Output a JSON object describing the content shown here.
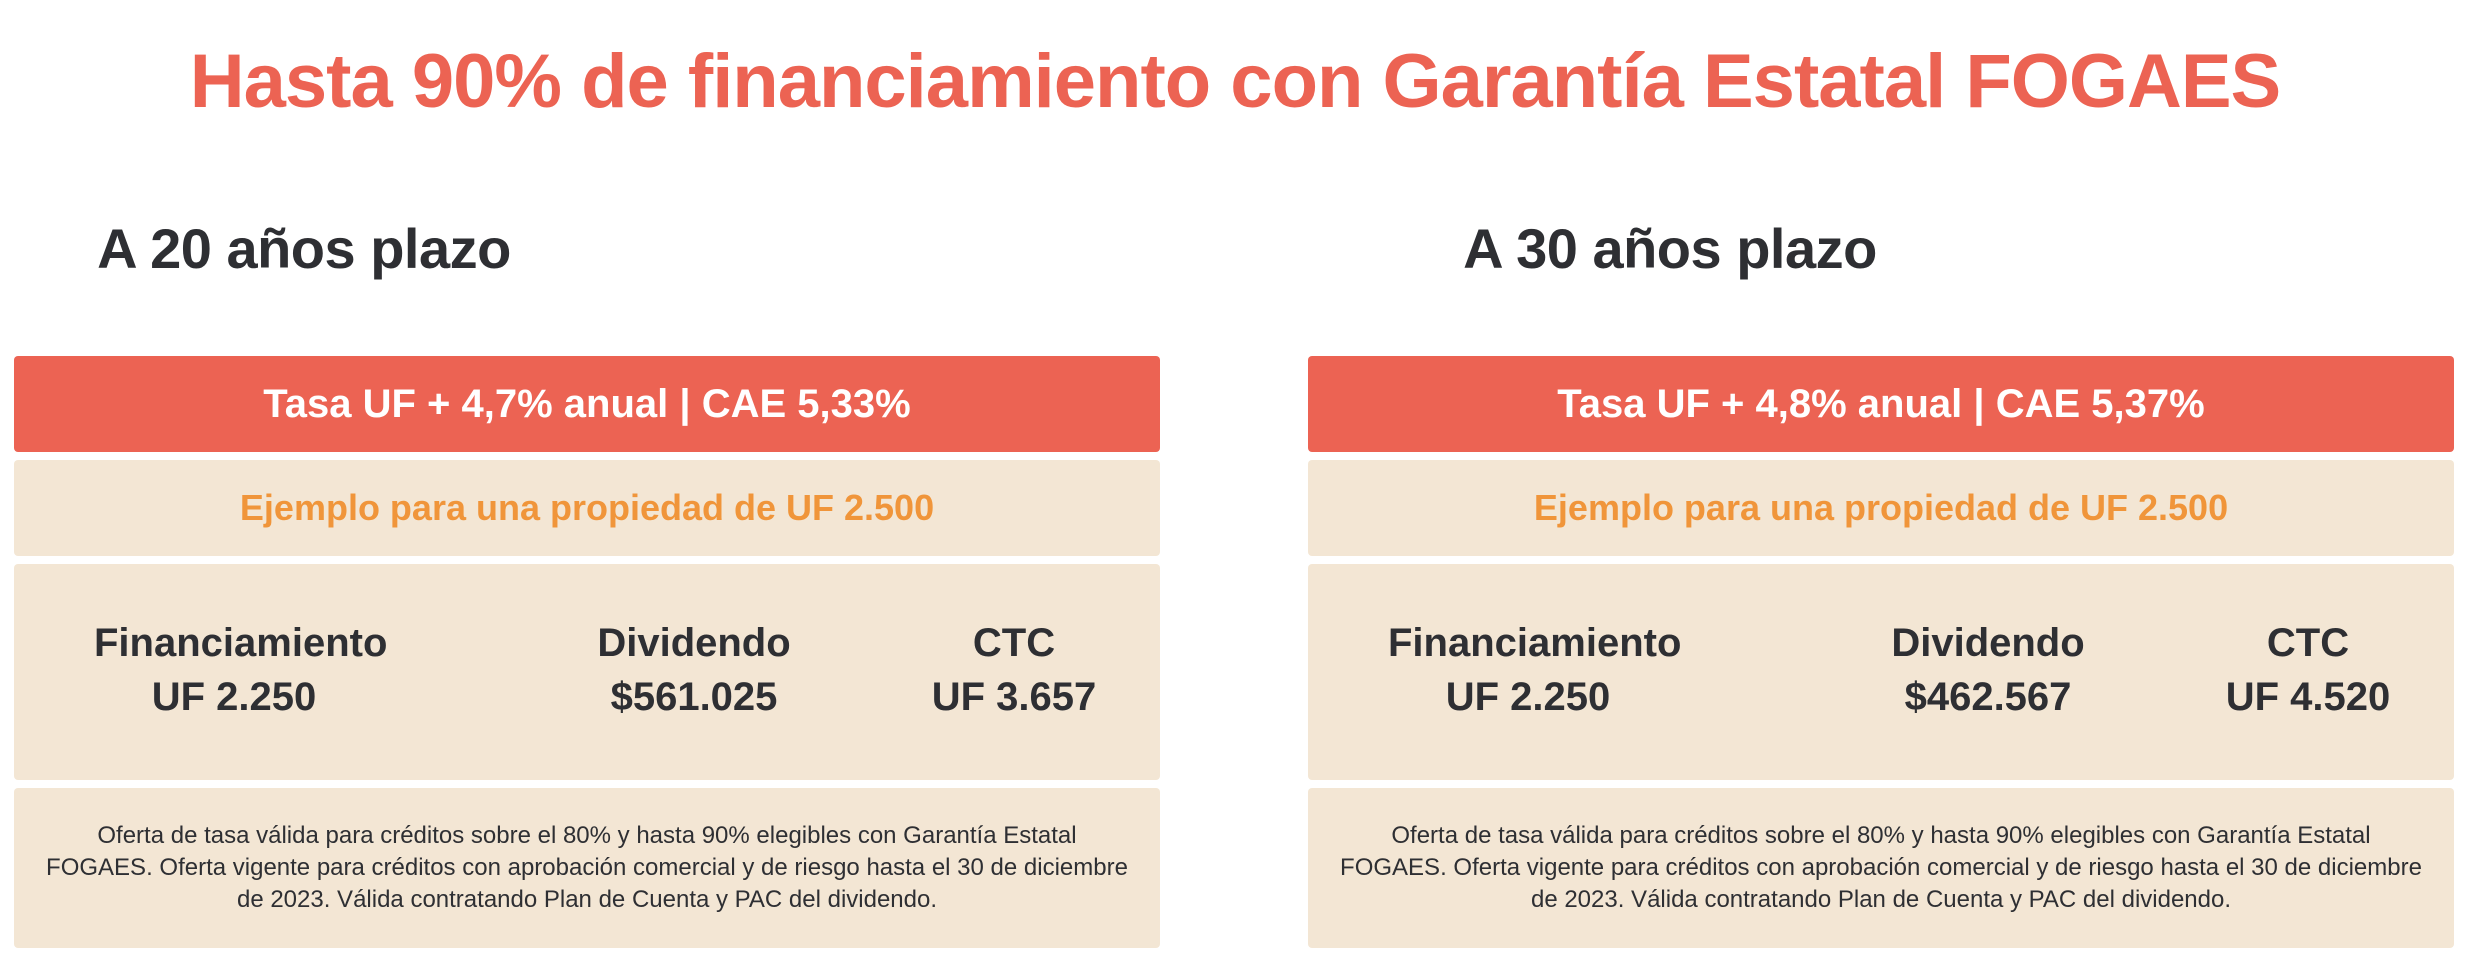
{
  "header": {
    "title": "Hasta 90% de financiamiento con Garantía Estatal FOGAES"
  },
  "offers": [
    {
      "term_label": "A 20 años plazo",
      "rate_label": "Tasa UF + 4,7% anual | CAE 5,33%",
      "example_label": "Ejemplo para una propiedad de UF 2.500",
      "financiamiento_label": "Financiamiento",
      "financiamiento_value": "UF 2.250",
      "dividendo_label": "Dividendo",
      "dividendo_value": "$561.025",
      "ctc_label": "CTC",
      "ctc_value": "UF 3.657",
      "disclaimer": "Oferta de tasa válida para créditos sobre el 80% y hasta 90% elegibles con Garantía Estatal FOGAES. Oferta vigente para créditos con aprobación comercial y de riesgo hasta el 30 de diciembre de 2023. Válida contratando Plan de Cuenta y PAC del dividendo."
    },
    {
      "term_label": "A 30 años plazo",
      "rate_label": "Tasa UF + 4,8% anual | CAE 5,37%",
      "example_label": "Ejemplo para una propiedad de UF 2.500",
      "financiamiento_label": "Financiamiento",
      "financiamiento_value": "UF 2.250",
      "dividendo_label": "Dividendo",
      "dividendo_value": "$462.567",
      "ctc_label": "CTC",
      "ctc_value": "UF 4.520",
      "disclaimer": "Oferta de tasa válida para créditos sobre el 80% y hasta 90% elegibles con Garantía Estatal FOGAES. Oferta vigente para créditos con aprobación comercial y de riesgo hasta el 30 de diciembre de 2023. Válida contratando Plan de Cuenta y PAC del dividendo."
    }
  ],
  "colors": {
    "accent": "#ec6353",
    "example_text": "#f0953a",
    "panel_bg": "#f3e6d4",
    "text_dark": "#2e2f33"
  }
}
